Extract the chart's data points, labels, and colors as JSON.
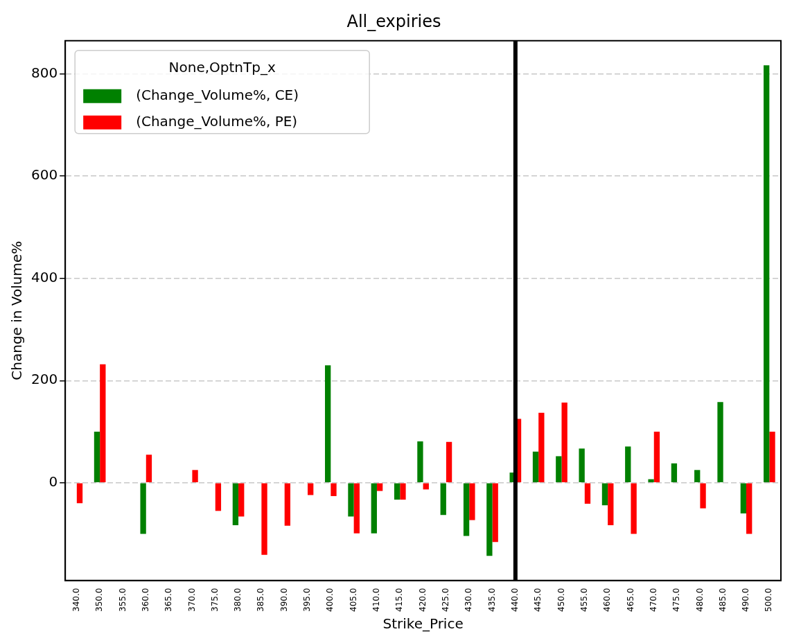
{
  "chart_data": {
    "type": "bar",
    "title": "All_expiries",
    "xlabel": "Strike_Price",
    "ylabel": "Change in Volume%",
    "legend_title": "None,OptnTp_x",
    "categories": [
      "340.0",
      "350.0",
      "355.0",
      "360.0",
      "365.0",
      "370.0",
      "375.0",
      "380.0",
      "385.0",
      "390.0",
      "395.0",
      "400.0",
      "405.0",
      "410.0",
      "415.0",
      "420.0",
      "425.0",
      "430.0",
      "435.0",
      "440.0",
      "445.0",
      "450.0",
      "455.0",
      "460.0",
      "465.0",
      "470.0",
      "475.0",
      "480.0",
      "485.0",
      "490.0",
      "500.0"
    ],
    "series": [
      {
        "name": "(Change_Volume%, CE)",
        "color": "#008000",
        "values": [
          null,
          100,
          null,
          -100,
          null,
          null,
          null,
          -83,
          null,
          null,
          null,
          230,
          -66,
          -99,
          -33,
          81,
          -63,
          -104,
          -143,
          20,
          61,
          52,
          67,
          -44,
          71,
          7,
          38,
          25,
          158,
          -60,
          817
        ]
      },
      {
        "name": "(Change_Volume%, PE)",
        "color": "#ff0000",
        "values": [
          -40,
          232,
          null,
          55,
          null,
          25,
          -55,
          -66,
          -141,
          -84,
          -24,
          -26,
          -99,
          -16,
          -33,
          -13,
          80,
          -73,
          -116,
          125,
          137,
          157,
          -41,
          -83,
          -100,
          100,
          null,
          -50,
          null,
          -100,
          100
        ]
      }
    ],
    "ylim": [
      -191,
      865
    ],
    "yticks": [
      0,
      200,
      400,
      600,
      800
    ],
    "grid": "y",
    "legend": "top left",
    "ref_lines": [
      {
        "axis": "x",
        "value": "440.0",
        "color": "#000000"
      }
    ]
  }
}
